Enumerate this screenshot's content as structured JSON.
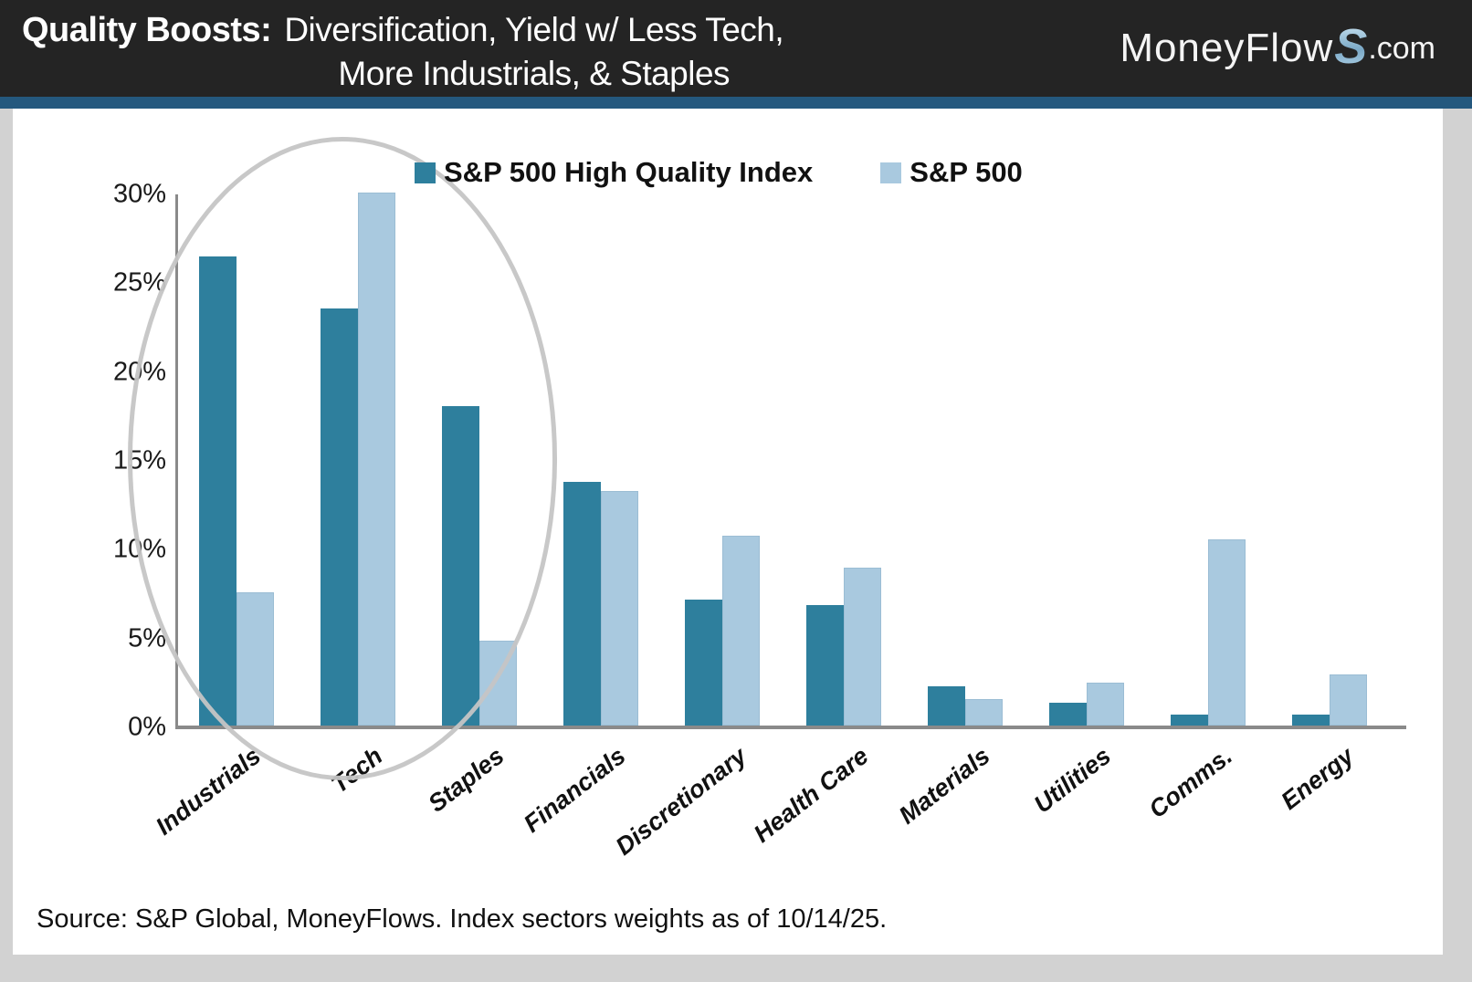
{
  "header": {
    "title_bold": "Quality Boosts:",
    "title_line1": "Diversification, Yield w/ Less Tech,",
    "title_line2": "More Industrials, & Staples",
    "logo_prefix": "MoneyFlow",
    "logo_s": "S",
    "logo_suffix": ".com"
  },
  "chart_data": {
    "type": "bar",
    "title": "Quality Boosts: Diversification, Yield w/ Less Tech, More Industrials, & Staples",
    "categories": [
      "Industrials",
      "Tech",
      "Staples",
      "Financials",
      "Discretionary",
      "Health Care",
      "Materials",
      "Utilities",
      "Comms.",
      "Energy"
    ],
    "series": [
      {
        "name": "S&P 500 High Quality Index",
        "color": "#2E7F9D",
        "values": [
          26.4,
          23.5,
          18.0,
          13.7,
          7.1,
          6.8,
          2.2,
          1.3,
          0.6,
          0.6
        ]
      },
      {
        "name": "S&P 500",
        "color": "#A9C9DF",
        "values": [
          7.5,
          30.0,
          4.8,
          13.2,
          10.7,
          8.9,
          1.5,
          2.4,
          10.5,
          2.9
        ]
      }
    ],
    "xlabel": "",
    "ylabel": "",
    "ylim": [
      0,
      30
    ],
    "ytick_labels": [
      "0%",
      "5%",
      "10%",
      "15%",
      "20%",
      "25%",
      "30%"
    ],
    "grid": false,
    "legend_position": "top",
    "annotation": "gray ellipse circling Industrials, Tech and Staples groups"
  },
  "source_note": "Source: S&P Global, MoneyFlows. Index sectors weights as of 10/14/25.",
  "colors": {
    "header_bg": "#242424",
    "divider_blue": "#24587E",
    "series_dark": "#2E7F9D",
    "series_light": "#A9C9DF",
    "axis_gray": "#8a8a8a",
    "ellipse_gray": "#c5c5c5",
    "page_bg": "#d2d2d2",
    "card_bg": "#ffffff"
  }
}
